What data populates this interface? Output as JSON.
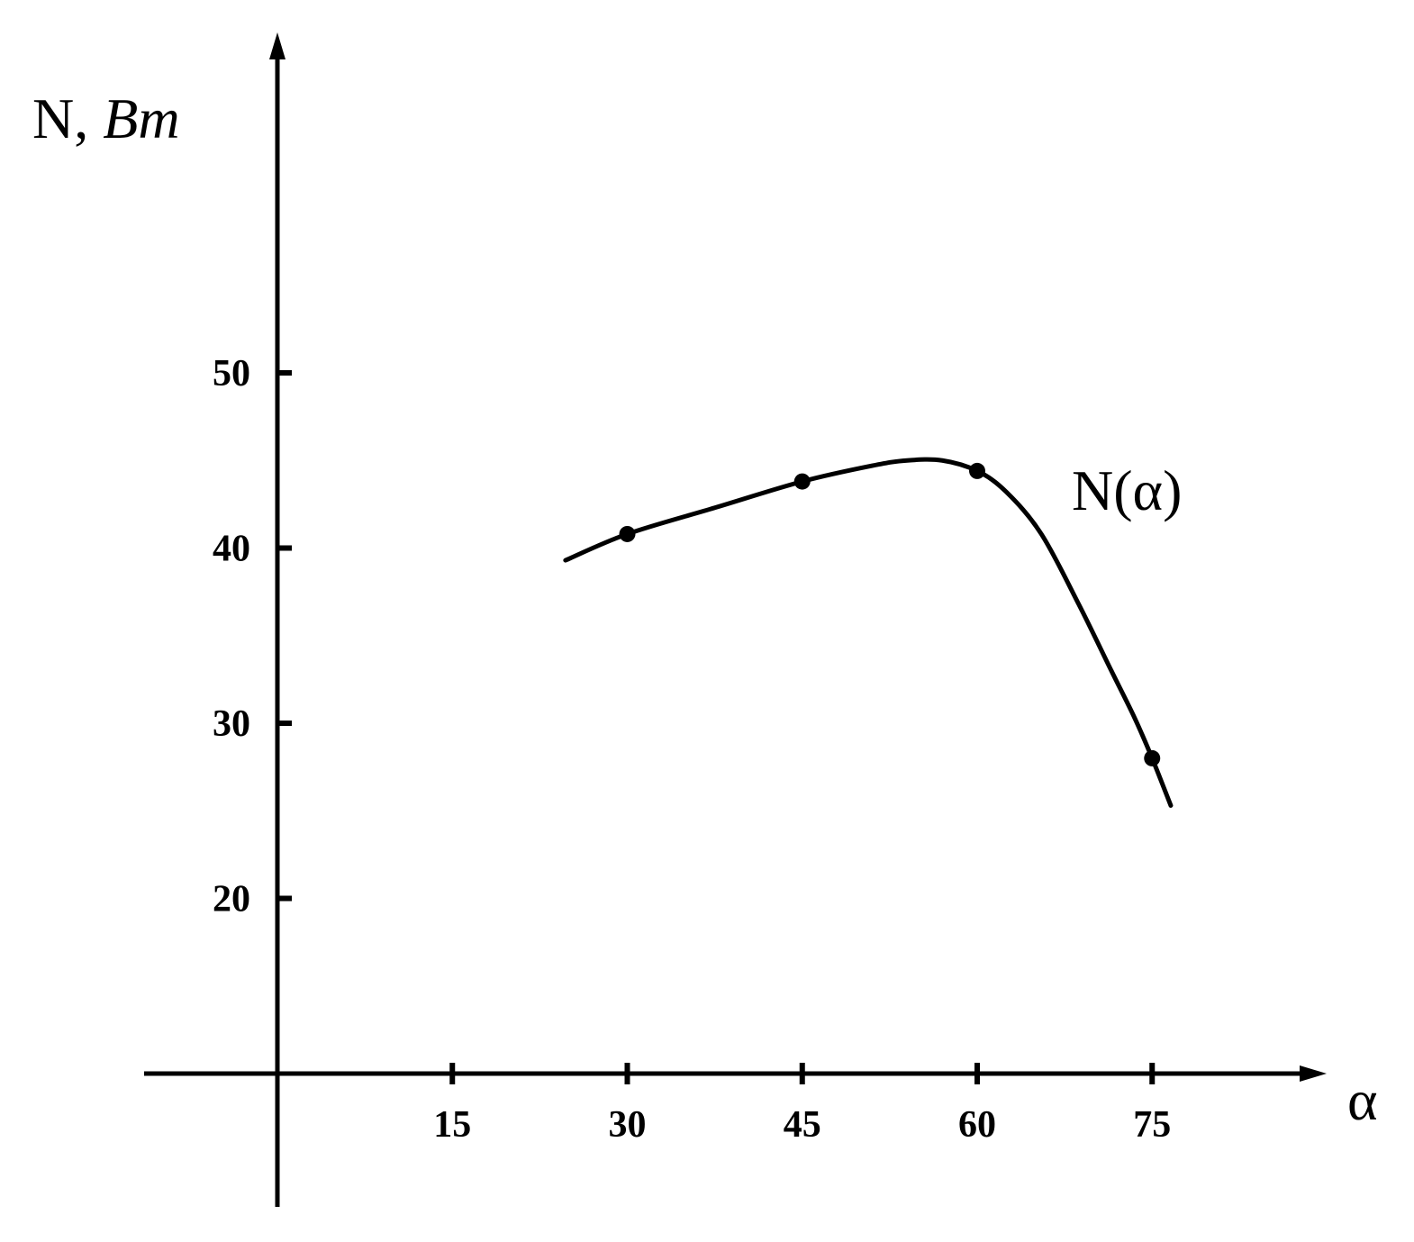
{
  "chart_data": {
    "type": "line",
    "title": "",
    "xlabel": "α",
    "ylabel": {
      "prefix": "N, ",
      "unit": "Bm"
    },
    "series": [
      {
        "name": "N(α)",
        "points": [
          {
            "x": 30,
            "y": 40.8
          },
          {
            "x": 45,
            "y": 43.8
          },
          {
            "x": 60,
            "y": 44.4
          },
          {
            "x": 75,
            "y": 28.0
          }
        ],
        "curve": [
          {
            "x": 24.7,
            "y": 39.3
          },
          {
            "x": 30,
            "y": 40.8
          },
          {
            "x": 37.5,
            "y": 42.3
          },
          {
            "x": 45,
            "y": 43.8
          },
          {
            "x": 51,
            "y": 44.7
          },
          {
            "x": 54,
            "y": 45.0
          },
          {
            "x": 57,
            "y": 45.0
          },
          {
            "x": 60,
            "y": 44.4
          },
          {
            "x": 62.5,
            "y": 43.2
          },
          {
            "x": 65.5,
            "y": 40.8
          },
          {
            "x": 68.7,
            "y": 36.8
          },
          {
            "x": 71.5,
            "y": 33.0
          },
          {
            "x": 73.5,
            "y": 30.3
          },
          {
            "x": 75,
            "y": 28.0
          },
          {
            "x": 76.6,
            "y": 25.3
          }
        ]
      }
    ],
    "x_ticks": [
      "15",
      "30",
      "45",
      "60",
      "75"
    ],
    "y_ticks": [
      "20",
      "30",
      "40",
      "50"
    ],
    "xlim": [
      0,
      90
    ],
    "ylim": [
      10,
      50
    ],
    "grid": false,
    "legend": "none",
    "colors": {
      "line": "#000000",
      "background": "#ffffff"
    }
  }
}
